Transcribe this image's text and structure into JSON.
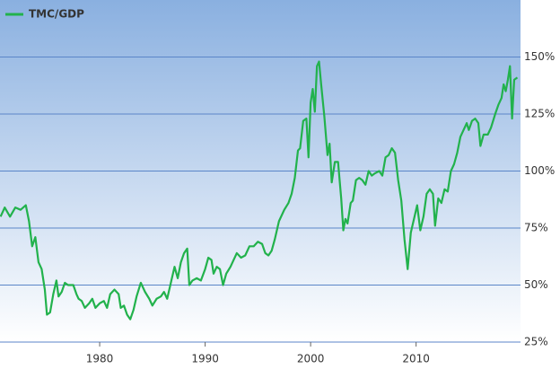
{
  "chart_data": {
    "type": "line",
    "x": [
      1970.6,
      1971,
      1971.5,
      1972,
      1972.5,
      1973,
      1973.3,
      1973.6,
      1973.9,
      1974.2,
      1974.5,
      1974.8,
      1975,
      1975.3,
      1975.6,
      1975.9,
      1976.1,
      1976.4,
      1976.7,
      1977,
      1977.5,
      1977.8,
      1978,
      1978.3,
      1978.6,
      1979,
      1979.3,
      1979.6,
      1980,
      1980.4,
      1980.7,
      1981,
      1981.4,
      1981.8,
      1982,
      1982.3,
      1982.6,
      1982.9,
      1983.2,
      1983.5,
      1983.9,
      1984.3,
      1984.7,
      1985,
      1985.4,
      1985.8,
      1986.1,
      1986.4,
      1986.8,
      1987.1,
      1987.4,
      1987.7,
      1988,
      1988.3,
      1988.5,
      1988.8,
      1989.2,
      1989.6,
      1990,
      1990.3,
      1990.6,
      1990.8,
      1991.1,
      1991.4,
      1991.7,
      1992,
      1992.4,
      1992.7,
      1993,
      1993.4,
      1993.8,
      1994.2,
      1994.6,
      1995,
      1995.4,
      1995.7,
      1996,
      1996.3,
      1996.6,
      1997,
      1997.5,
      1997.9,
      1998.2,
      1998.5,
      1998.8,
      1999,
      1999.3,
      1999.6,
      1999.8,
      2000,
      2000.2,
      2000.4,
      2000.6,
      2000.8,
      2001,
      2001.3,
      2001.6,
      2001.8,
      2002,
      2002.3,
      2002.6,
      2002.9,
      2003.1,
      2003.3,
      2003.5,
      2003.8,
      2004,
      2004.3,
      2004.6,
      2004.9,
      2005.2,
      2005.5,
      2005.8,
      2006.1,
      2006.5,
      2006.8,
      2007.1,
      2007.4,
      2007.7,
      2008,
      2008.3,
      2008.6,
      2008.9,
      2009.2,
      2009.5,
      2009.8,
      2010.1,
      2010.4,
      2010.7,
      2011,
      2011.3,
      2011.6,
      2011.8,
      2012.1,
      2012.4,
      2012.7,
      2013,
      2013.3,
      2013.6,
      2013.9,
      2014.2,
      2014.5,
      2014.8,
      2015,
      2015.3,
      2015.6,
      2015.9,
      2016.1,
      2016.4,
      2016.8,
      2017.1,
      2017.5,
      2017.8,
      2018.1,
      2018.3,
      2018.5,
      2018.7,
      2018.9,
      2019.1,
      2019.3,
      2019.6
    ],
    "series": [
      {
        "name": "TMC/GDP",
        "color": "#22b24c",
        "values": [
          80,
          84,
          80,
          84,
          83,
          85,
          78,
          67,
          71,
          60,
          57,
          48,
          37,
          38,
          46,
          52,
          45,
          47,
          51,
          50,
          50,
          46,
          44,
          43,
          40,
          42,
          44,
          40,
          42,
          43,
          40,
          46,
          48,
          46,
          40,
          41,
          37,
          35,
          39,
          45,
          51,
          47,
          44,
          41,
          44,
          45,
          47,
          44,
          52,
          58,
          53,
          60,
          64,
          66,
          50,
          52,
          53,
          52,
          57,
          62,
          61,
          55,
          58,
          57,
          50,
          55,
          58,
          61,
          64,
          62,
          63,
          67,
          67,
          69,
          68,
          64,
          63,
          65,
          70,
          78,
          83,
          86,
          90,
          97,
          109,
          110,
          122,
          123,
          106,
          130,
          136,
          126,
          146,
          148,
          138,
          124,
          107,
          112,
          95,
          104,
          104,
          88,
          74,
          79,
          77,
          86,
          87,
          96,
          97,
          96,
          94,
          100,
          98,
          99,
          100,
          98,
          106,
          107,
          110,
          108,
          96,
          87,
          70,
          57,
          73,
          79,
          85,
          74,
          80,
          90,
          92,
          90,
          76,
          88,
          86,
          92,
          91,
          100,
          103,
          108,
          115,
          118,
          121,
          118,
          122,
          123,
          121,
          111,
          116,
          116,
          119,
          125,
          129,
          132,
          138,
          135,
          140,
          146,
          123,
          140,
          141
        ]
      }
    ],
    "xlim": [
      1970.55,
      2019.9
    ],
    "xticks": [
      1980,
      1990,
      2000,
      2010
    ],
    "ylim": [
      25,
      175
    ],
    "yticks": [
      {
        "value": 25,
        "label": "25%"
      },
      {
        "value": 50,
        "label": "50%"
      },
      {
        "value": 75,
        "label": "75%"
      },
      {
        "value": 100,
        "label": "100%"
      },
      {
        "value": 125,
        "label": "125%"
      },
      {
        "value": 150,
        "label": "150%"
      }
    ],
    "grid": true
  }
}
